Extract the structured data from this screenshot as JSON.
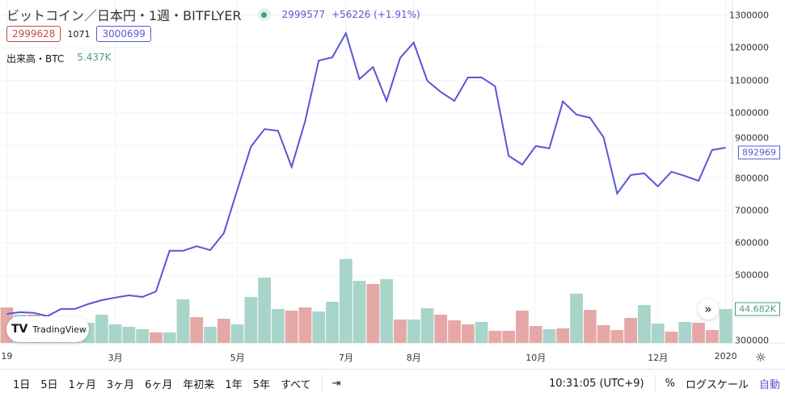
{
  "header": {
    "title": "ビットコイン／日本円・1週・BITFLYER",
    "price": "2999577",
    "change": "+56226 (+1.91%)",
    "bid": "2999628",
    "spread": "1071",
    "ask": "3000699",
    "volume_label": "出来高・BTC",
    "volume_value": "5.437K",
    "status_color": "#4f9a7c"
  },
  "watermark": "TradingView",
  "toolbar": {
    "ranges": [
      "1日",
      "5日",
      "1ヶ月",
      "3ヶ月",
      "6ヶ月",
      "年初来",
      "1年",
      "5年",
      "すべて"
    ],
    "time": "10:31:05 (UTC+9)",
    "percent": "%",
    "log": "ログスケール",
    "auto": "自動"
  },
  "chart_data": {
    "type": "line",
    "colors": {
      "line": "#5b55d6",
      "up": "#a8d5ca",
      "down": "#e6a8a6"
    },
    "yticks": [
      1300000,
      1200000,
      1100000,
      1000000,
      900000,
      800000,
      700000,
      600000,
      500000,
      300000
    ],
    "ylim": [
      300000,
      1300000
    ],
    "xticks": [
      {
        "label": "19",
        "i": 0
      },
      {
        "label": "3月",
        "i": 8
      },
      {
        "label": "5月",
        "i": 17
      },
      {
        "label": "7月",
        "i": 25
      },
      {
        "label": "8月",
        "i": 30
      },
      {
        "label": "10月",
        "i": 39
      },
      {
        "label": "12月",
        "i": 48
      },
      {
        "label": "2020",
        "i": 53
      }
    ],
    "last_price_label": "892969",
    "last_volume_label": "44.682K",
    "grid": true,
    "close": [
      382000,
      387000,
      385000,
      375000,
      397000,
      397000,
      412000,
      424000,
      432000,
      439000,
      434000,
      451000,
      576000,
      576000,
      590000,
      578000,
      630000,
      764000,
      896000,
      950000,
      945000,
      834000,
      975000,
      1161000,
      1171000,
      1245000,
      1104000,
      1141000,
      1037000,
      1169000,
      1216000,
      1099000,
      1064000,
      1037000,
      1109000,
      1109000,
      1082000,
      868000,
      841000,
      898000,
      891000,
      1035000,
      995000,
      985000,
      925000,
      752000,
      809000,
      814000,
      774000,
      819000,
      806000,
      791000,
      886000,
      892969
    ],
    "volume_k": [
      46.8,
      37.2,
      37.2,
      31.9,
      26.6,
      21.3,
      26.6,
      37.2,
      24.5,
      21.3,
      18.1,
      13.8,
      13.8,
      57.5,
      34.0,
      21.3,
      31.9,
      24.5,
      60.6,
      86.2,
      44.7,
      42.6,
      46.8,
      41.5,
      54.3,
      110.7,
      81.9,
      77.7,
      84.1,
      30.9,
      30.9,
      45.8,
      37.2,
      29.8,
      24.5,
      27.7,
      16.0,
      16.0,
      42.6,
      22.3,
      18.1,
      19.2,
      64.9,
      43.6,
      23.4,
      17.0,
      33.0,
      50.0,
      25.5,
      14.9,
      27.7,
      26.6,
      17.0,
      44.682
    ],
    "volume_up": [
      0,
      1,
      0,
      1,
      1,
      1,
      1,
      1,
      1,
      1,
      1,
      0,
      1,
      1,
      0,
      1,
      0,
      1,
      1,
      1,
      1,
      0,
      0,
      1,
      1,
      1,
      1,
      0,
      1,
      0,
      1,
      1,
      0,
      0,
      0,
      1,
      0,
      0,
      0,
      0,
      1,
      0,
      1,
      0,
      0,
      0,
      0,
      1,
      1,
      0,
      1,
      0,
      0,
      1
    ]
  }
}
